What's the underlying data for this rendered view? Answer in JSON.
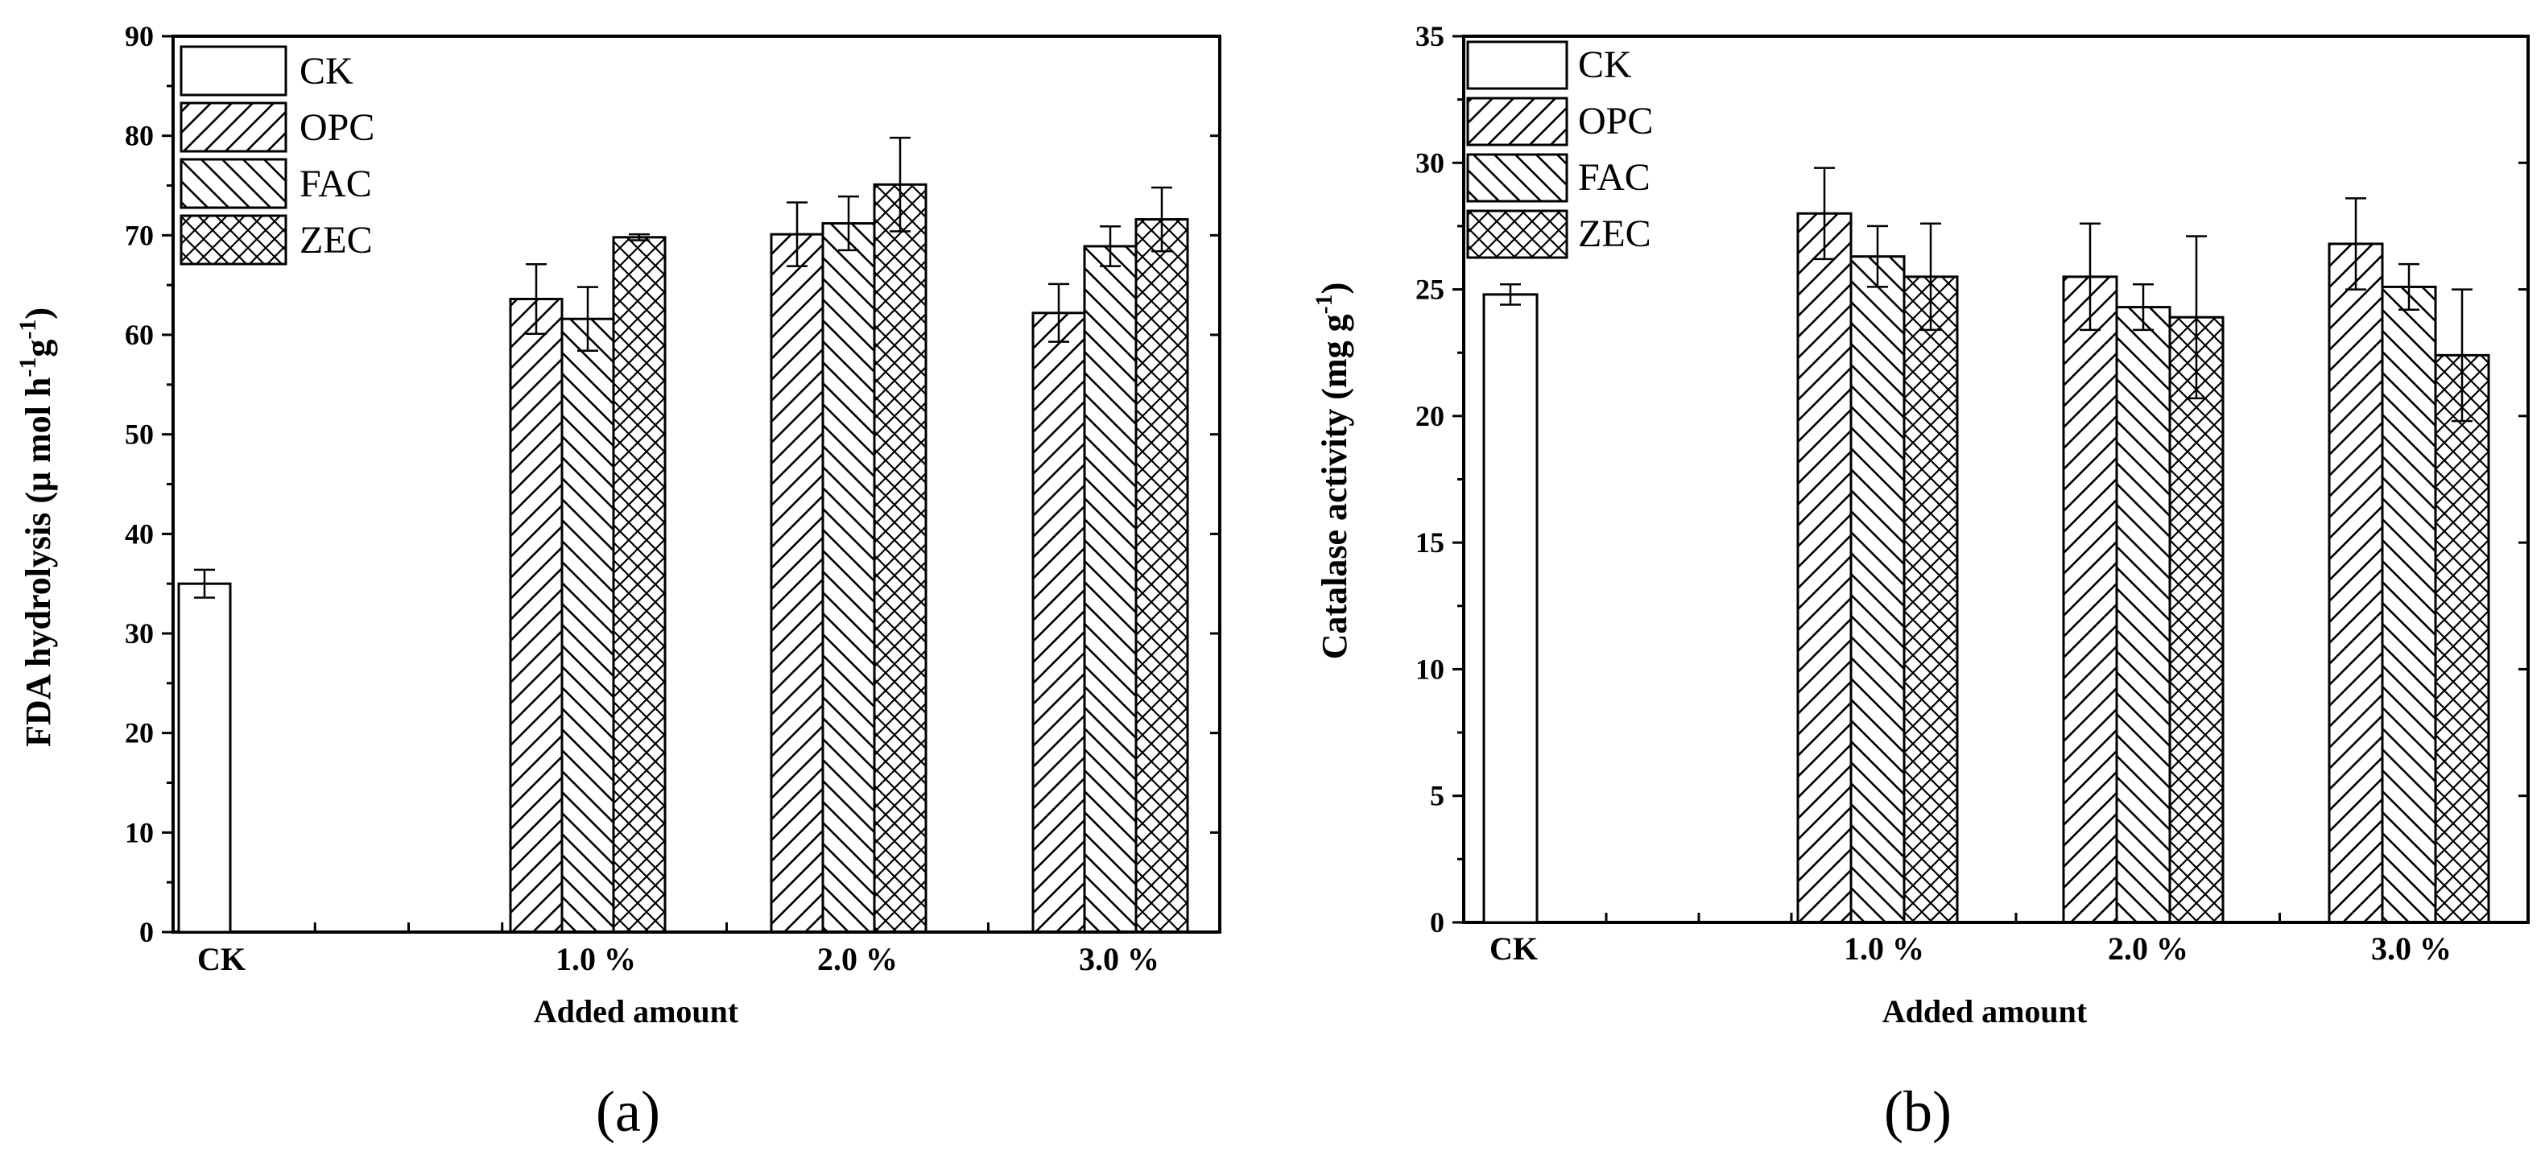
{
  "chart_data": [
    {
      "type": "bar",
      "panel_label": "(a)",
      "xlabel": "Added amount",
      "ylabel_parts": [
        "FDA hydrolysis (μ mol h",
        "-1",
        "g",
        "-1",
        ")"
      ],
      "ylim": [
        0,
        90
      ],
      "yticks": [
        "0",
        "10",
        "20",
        "30",
        "40",
        "50",
        "60",
        "70",
        "80",
        "90"
      ],
      "legend_position": "top-left",
      "categories": [
        "CK",
        "1.0 %",
        "2.0 %",
        "3.0 %"
      ],
      "series": [
        {
          "name": "CK",
          "pattern": "none",
          "values": [
            35.0,
            null,
            null,
            null
          ],
          "errors": [
            1.4,
            null,
            null,
            null
          ]
        },
        {
          "name": "OPC",
          "pattern": "diagonal-up",
          "values": [
            null,
            63.6,
            70.1,
            62.2
          ],
          "errors": [
            null,
            3.5,
            3.2,
            2.9
          ]
        },
        {
          "name": "FAC",
          "pattern": "diagonal-down",
          "values": [
            null,
            61.6,
            71.2,
            68.9
          ],
          "errors": [
            null,
            3.2,
            2.7,
            2.0
          ]
        },
        {
          "name": "ZEC",
          "pattern": "crosshatch",
          "values": [
            null,
            69.8,
            75.1,
            71.6
          ],
          "errors": [
            null,
            0.3,
            4.7,
            3.2
          ]
        }
      ]
    },
    {
      "type": "bar",
      "panel_label": "(b)",
      "xlabel": "Added amount",
      "ylabel_parts": [
        "Catalase activity (mg g",
        "-1",
        ")"
      ],
      "ylim": [
        0,
        35
      ],
      "yticks": [
        "0",
        "5",
        "10",
        "15",
        "20",
        "25",
        "30",
        "35"
      ],
      "legend_position": "top-left",
      "categories": [
        "CK",
        "1.0 %",
        "2.0 %",
        "3.0 %"
      ],
      "series": [
        {
          "name": "CK",
          "pattern": "none",
          "values": [
            24.8,
            null,
            null,
            null
          ],
          "errors": [
            0.4,
            null,
            null,
            null
          ]
        },
        {
          "name": "OPC",
          "pattern": "diagonal-up",
          "values": [
            null,
            28.0,
            25.5,
            26.8
          ],
          "errors": [
            null,
            1.8,
            2.1,
            1.8
          ]
        },
        {
          "name": "FAC",
          "pattern": "diagonal-down",
          "values": [
            null,
            26.3,
            24.3,
            25.1
          ],
          "errors": [
            null,
            1.2,
            0.9,
            0.9
          ]
        },
        {
          "name": "ZEC",
          "pattern": "crosshatch",
          "values": [
            null,
            25.5,
            23.9,
            22.4
          ],
          "errors": [
            null,
            2.1,
            3.2,
            2.6
          ]
        }
      ]
    }
  ]
}
